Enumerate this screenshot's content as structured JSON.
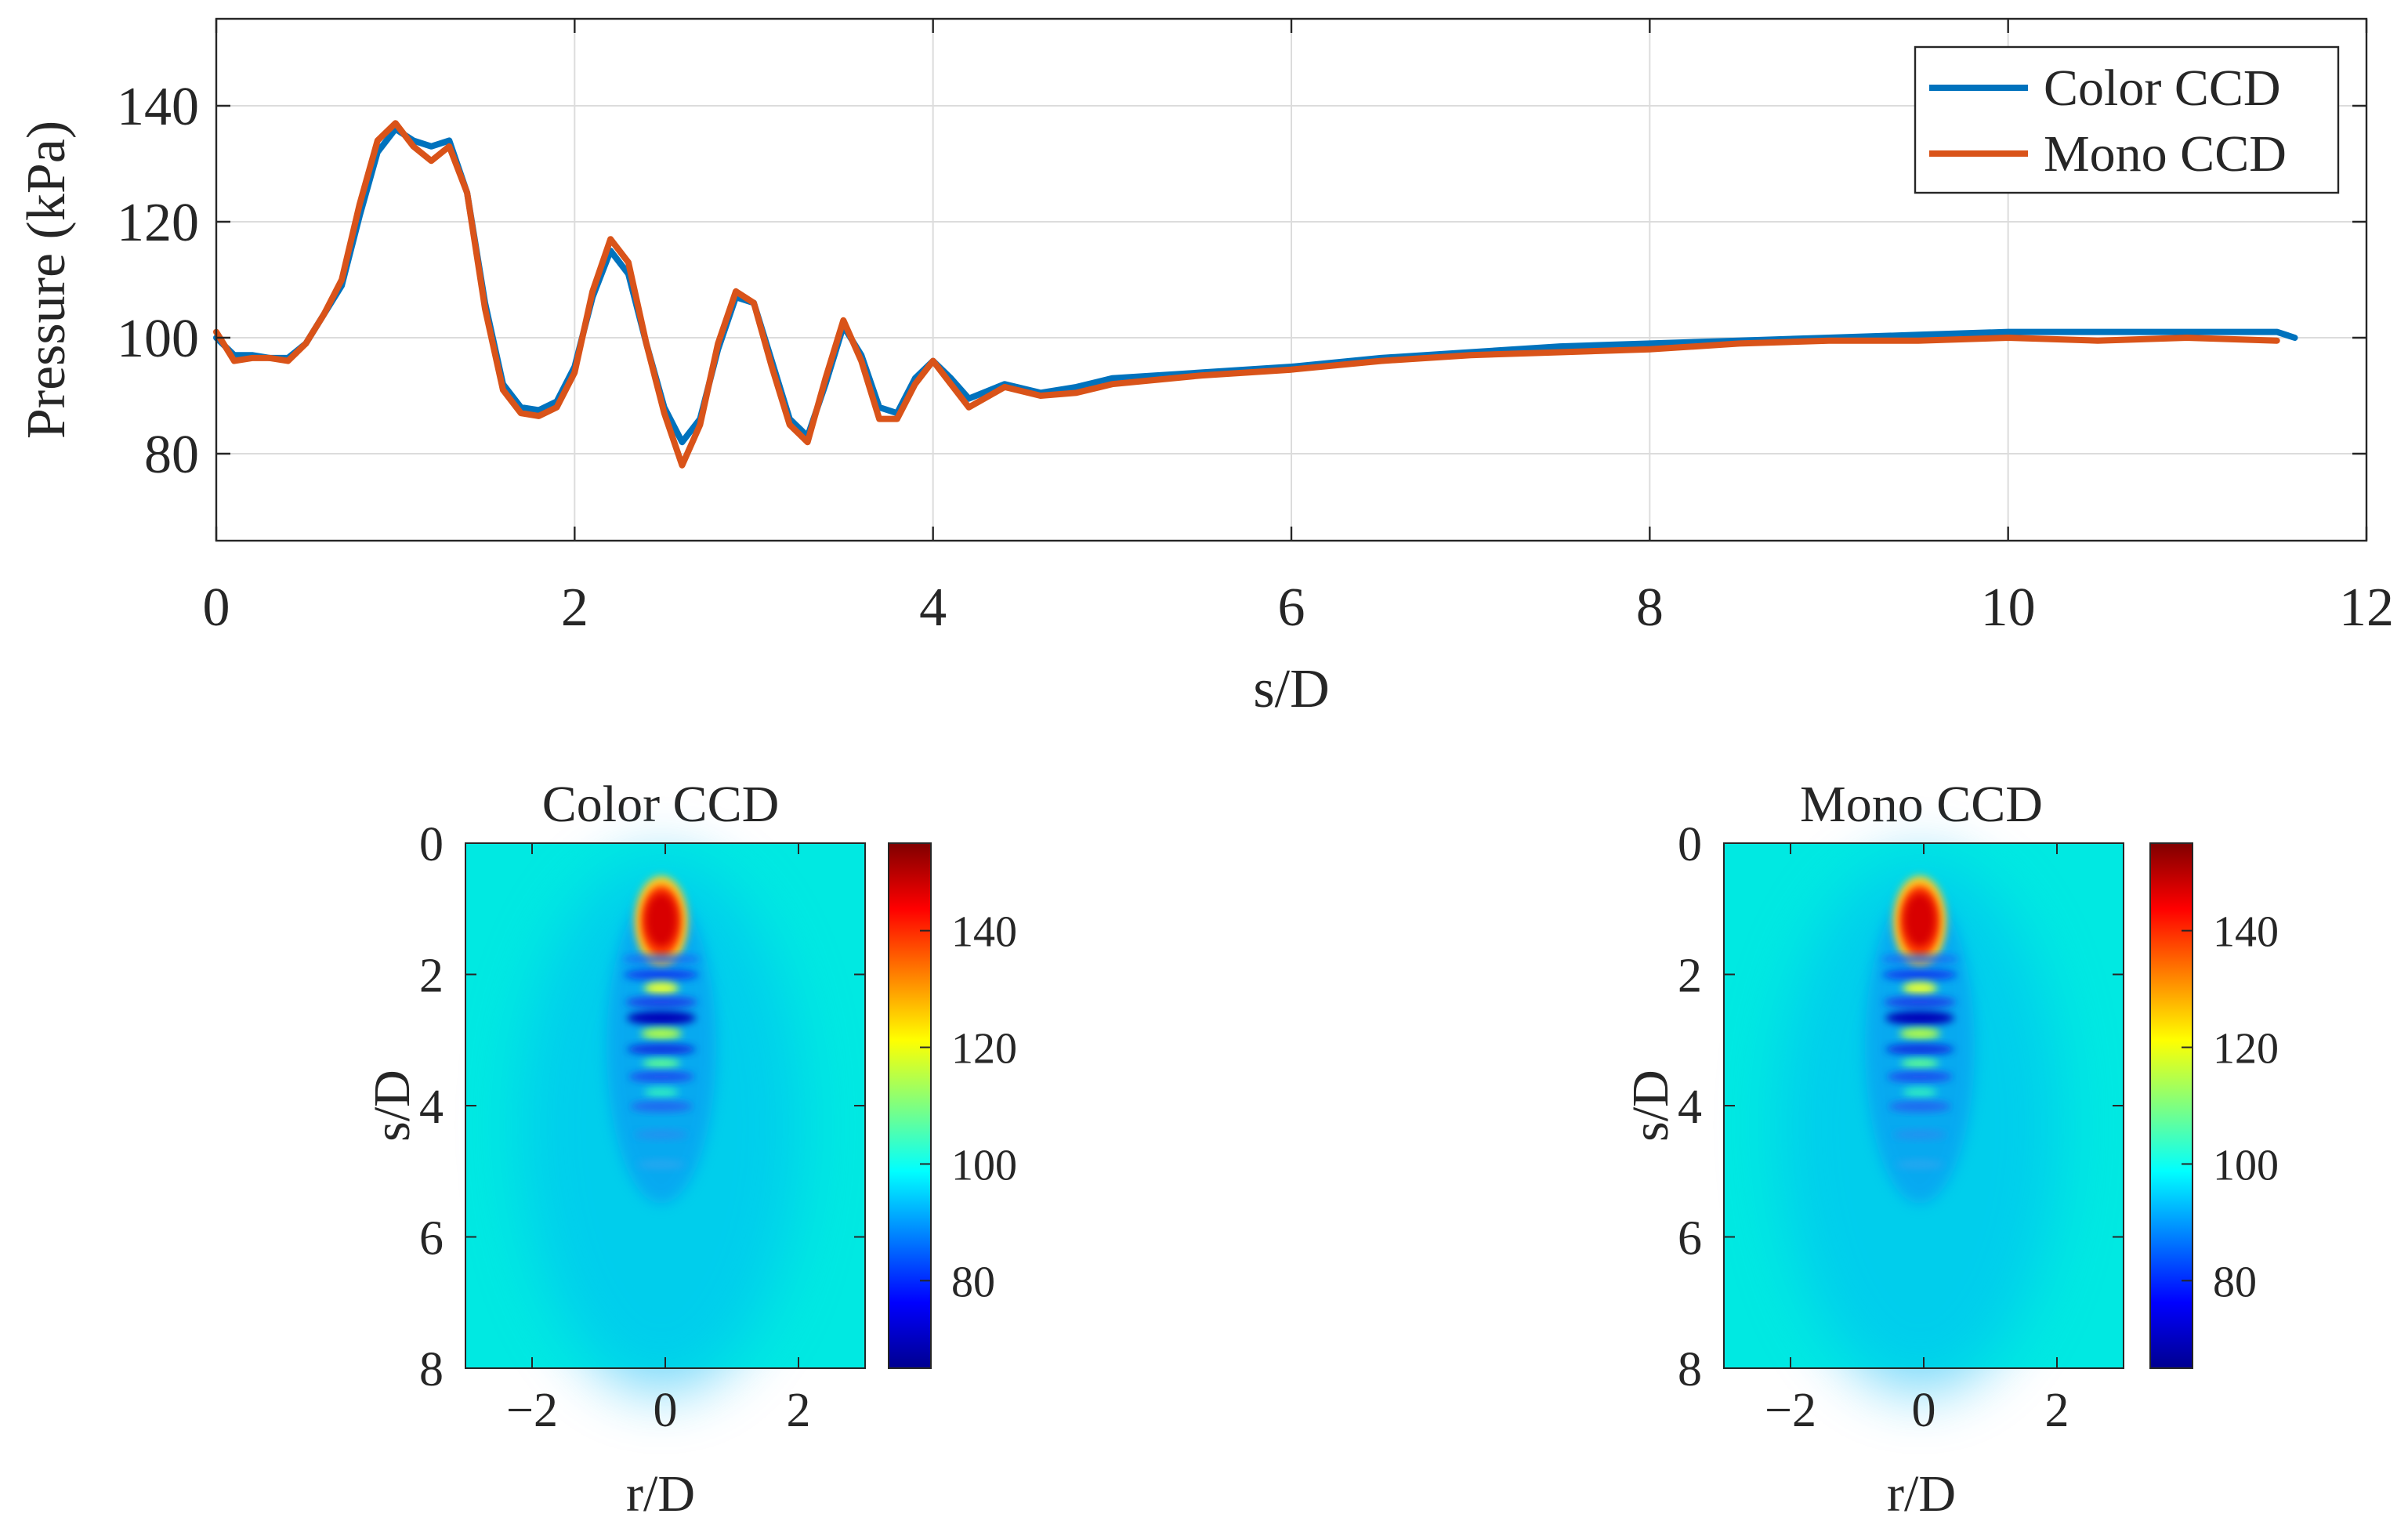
{
  "chart_data": [
    {
      "type": "line",
      "title": "",
      "xlabel": "s/D",
      "ylabel": "Pressure (kPa)",
      "xlim": [
        0,
        12
      ],
      "ylim": [
        65,
        155
      ],
      "xticks": [
        0,
        2,
        4,
        6,
        8,
        10,
        12
      ],
      "yticks": [
        80,
        100,
        120,
        140
      ],
      "grid": true,
      "legend_position": "top-right",
      "series": [
        {
          "name": "Color CCD",
          "color": "#0072BD",
          "x": [
            0,
            0.1,
            0.2,
            0.3,
            0.4,
            0.5,
            0.6,
            0.7,
            0.8,
            0.9,
            1.0,
            1.1,
            1.2,
            1.3,
            1.4,
            1.5,
            1.6,
            1.7,
            1.8,
            1.9,
            2.0,
            2.1,
            2.2,
            2.3,
            2.4,
            2.5,
            2.6,
            2.7,
            2.8,
            2.9,
            3.0,
            3.1,
            3.2,
            3.3,
            3.4,
            3.5,
            3.6,
            3.7,
            3.8,
            3.9,
            4.0,
            4.1,
            4.2,
            4.4,
            4.6,
            4.8,
            5.0,
            5.5,
            6.0,
            6.5,
            7.0,
            7.5,
            8.0,
            8.5,
            9.0,
            9.5,
            10.0,
            10.5,
            11.0,
            11.5,
            11.6
          ],
          "y": [
            100,
            97,
            97,
            96.5,
            96.5,
            99,
            104,
            109,
            121,
            132,
            136,
            134,
            133,
            134,
            125,
            106,
            92,
            88,
            87.5,
            89,
            95,
            107,
            115,
            111,
            99,
            88,
            82,
            86,
            98,
            107,
            106,
            96,
            86,
            83,
            92,
            102,
            97,
            88,
            87,
            93,
            96,
            93,
            89.5,
            92,
            90.5,
            91.5,
            93,
            94,
            95,
            96.5,
            97.5,
            98.5,
            99,
            99.5,
            100,
            100.5,
            101,
            101,
            101,
            101,
            100
          ]
        },
        {
          "name": "Mono CCD",
          "color": "#D95319",
          "x": [
            0,
            0.1,
            0.2,
            0.3,
            0.4,
            0.5,
            0.6,
            0.7,
            0.8,
            0.9,
            1.0,
            1.1,
            1.2,
            1.3,
            1.4,
            1.5,
            1.6,
            1.7,
            1.8,
            1.9,
            2.0,
            2.1,
            2.2,
            2.3,
            2.4,
            2.5,
            2.6,
            2.7,
            2.8,
            2.9,
            3.0,
            3.1,
            3.2,
            3.3,
            3.4,
            3.5,
            3.6,
            3.7,
            3.8,
            3.9,
            4.0,
            4.1,
            4.2,
            4.4,
            4.6,
            4.8,
            5.0,
            5.5,
            6.0,
            6.5,
            7.0,
            7.5,
            8.0,
            8.5,
            9.0,
            9.5,
            10.0,
            10.5,
            11.0,
            11.5
          ],
          "y": [
            101,
            96,
            96.5,
            96.5,
            96,
            99,
            104,
            110,
            123,
            134,
            137,
            133,
            130.5,
            133,
            125,
            105,
            91,
            87,
            86.5,
            88,
            94,
            108,
            117,
            113,
            99,
            87,
            78,
            85,
            99,
            108,
            106,
            95,
            85,
            82,
            93,
            103,
            96,
            86,
            86,
            92,
            96,
            92,
            88,
            91.5,
            90,
            90.5,
            92,
            93.5,
            94.5,
            96,
            97,
            97.5,
            98,
            99,
            99.5,
            99.5,
            100,
            99.5,
            100,
            99.5
          ]
        }
      ]
    },
    {
      "type": "heatmap",
      "title": "Color CCD",
      "xlabel": "r/D",
      "ylabel": "s/D",
      "xlim": [
        -3,
        3
      ],
      "ylim": [
        0,
        8
      ],
      "xticks": [
        -2,
        0,
        2
      ],
      "xtick_labels": [
        "−2",
        "0",
        "2"
      ],
      "yticks": [
        0,
        2,
        4,
        6,
        8
      ],
      "yaxis_reversed": true,
      "colormap": "jet",
      "clim": [
        65,
        155
      ],
      "colorbar_ticks": [
        80,
        100,
        120,
        140
      ],
      "colorbar_position": "right"
    },
    {
      "type": "heatmap",
      "title": "Mono CCD",
      "xlabel": "r/D",
      "ylabel": "s/D",
      "xlim": [
        -3,
        3
      ],
      "ylim": [
        0,
        8
      ],
      "xticks": [
        -2,
        0,
        2
      ],
      "xtick_labels": [
        "−2",
        "0",
        "2"
      ],
      "yticks": [
        0,
        2,
        4,
        6,
        8
      ],
      "yaxis_reversed": true,
      "colormap": "jet",
      "clim": [
        65,
        155
      ],
      "colorbar_ticks": [
        80,
        100,
        120,
        140
      ],
      "colorbar_position": "right"
    }
  ],
  "colors": {
    "axis": "#262626",
    "grid": "#dcdcdc",
    "background": "#00e8e8"
  }
}
